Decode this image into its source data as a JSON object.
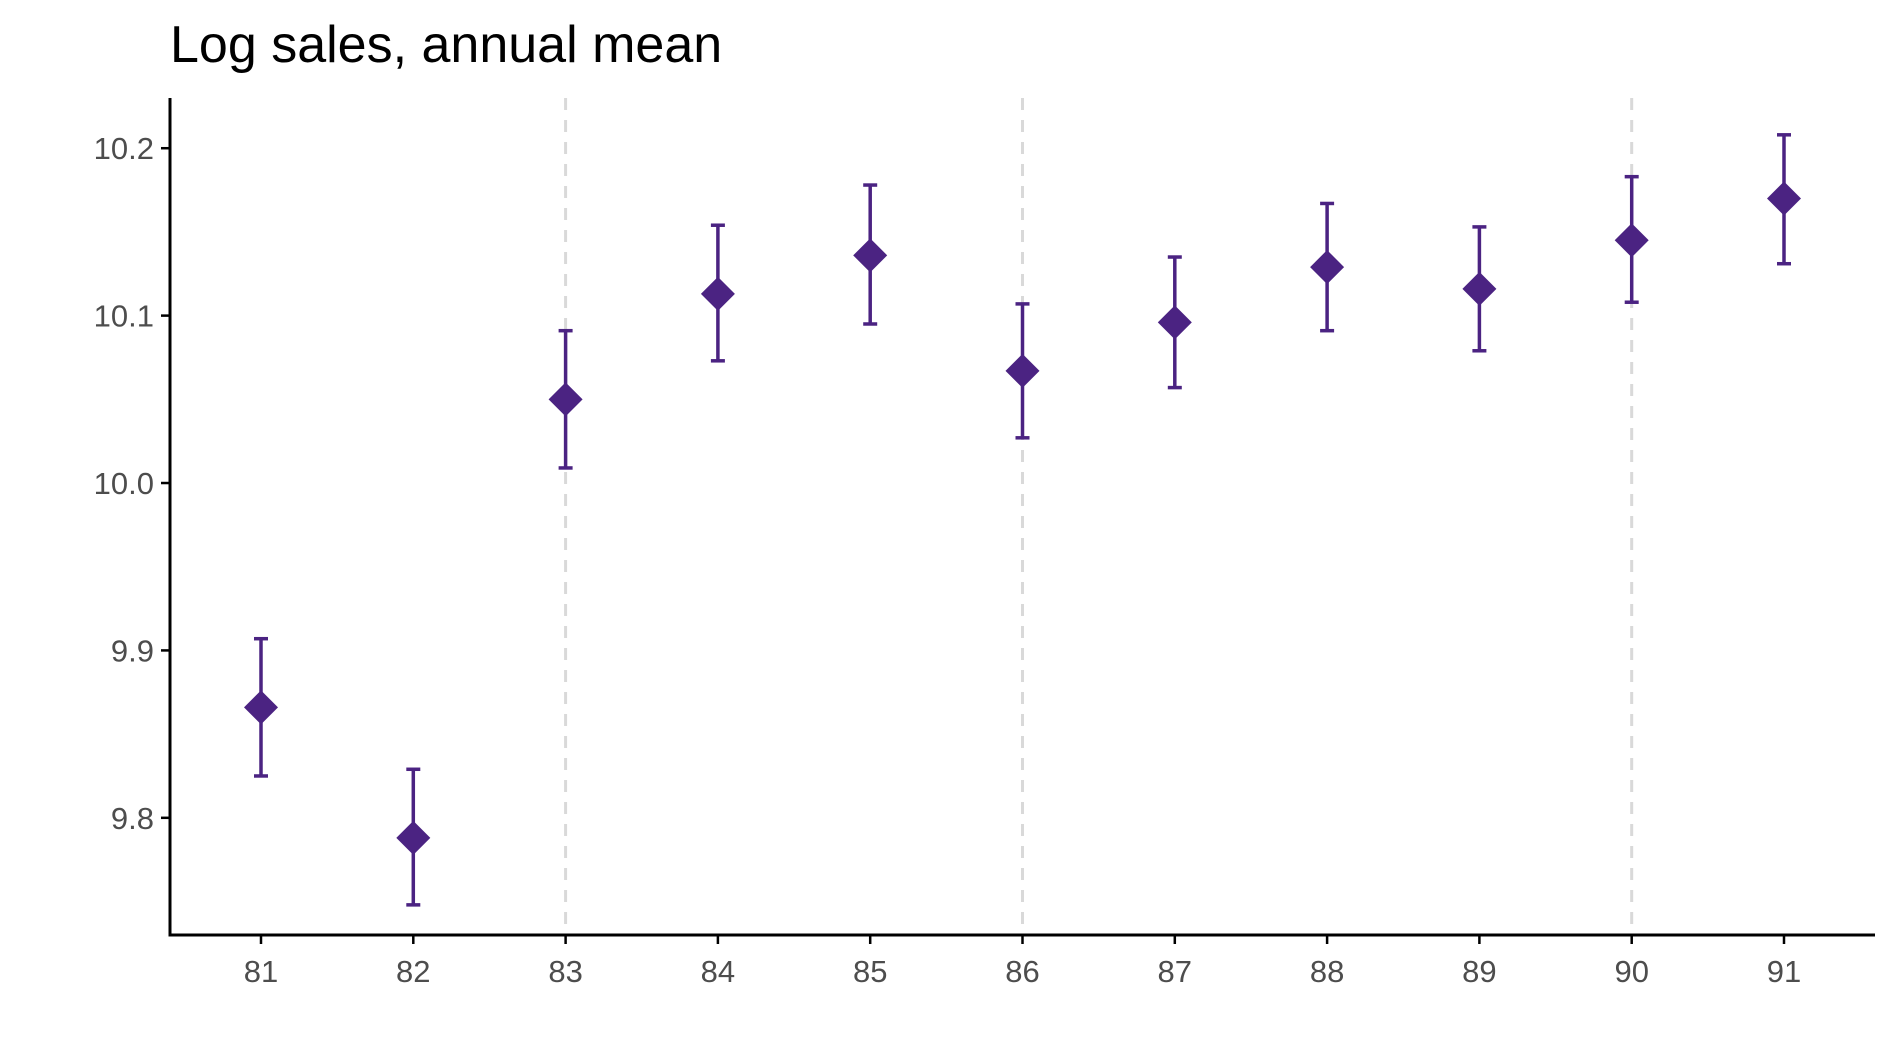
{
  "chart_data": {
    "type": "scatter",
    "title": "Log sales, annual mean",
    "xlabel": "",
    "ylabel": "",
    "x_categories": [
      "81",
      "82",
      "83",
      "84",
      "85",
      "86",
      "87",
      "88",
      "89",
      "90",
      "91"
    ],
    "ylim": [
      9.73,
      10.23
    ],
    "y_ticks": [
      9.8,
      9.9,
      10.0,
      10.1,
      10.2
    ],
    "y_tick_labels": [
      "9.8",
      "9.9",
      "10.0",
      "10.1",
      "10.2"
    ],
    "grid": false,
    "vertical_reference_lines": [
      "83",
      "86",
      "90"
    ],
    "series": [
      {
        "marker": "diamond",
        "color": "#4b2382",
        "points": [
          {
            "x": "81",
            "y": 9.866,
            "lower": 9.825,
            "upper": 9.907
          },
          {
            "x": "82",
            "y": 9.788,
            "lower": 9.748,
            "upper": 9.829
          },
          {
            "x": "83",
            "y": 10.05,
            "lower": 10.009,
            "upper": 10.091
          },
          {
            "x": "84",
            "y": 10.113,
            "lower": 10.073,
            "upper": 10.154
          },
          {
            "x": "85",
            "y": 10.136,
            "lower": 10.095,
            "upper": 10.178
          },
          {
            "x": "86",
            "y": 10.067,
            "lower": 10.027,
            "upper": 10.107
          },
          {
            "x": "87",
            "y": 10.096,
            "lower": 10.057,
            "upper": 10.135
          },
          {
            "x": "88",
            "y": 10.129,
            "lower": 10.091,
            "upper": 10.167
          },
          {
            "x": "89",
            "y": 10.116,
            "lower": 10.079,
            "upper": 10.153
          },
          {
            "x": "90",
            "y": 10.145,
            "lower": 10.108,
            "upper": 10.183
          },
          {
            "x": "91",
            "y": 10.17,
            "lower": 10.131,
            "upper": 10.208
          }
        ]
      }
    ],
    "colors": {
      "points": "#4b2382",
      "reference_lines": "#d9d9d9",
      "axis": "#000000",
      "tick_labels": "#4d4d4d"
    }
  }
}
